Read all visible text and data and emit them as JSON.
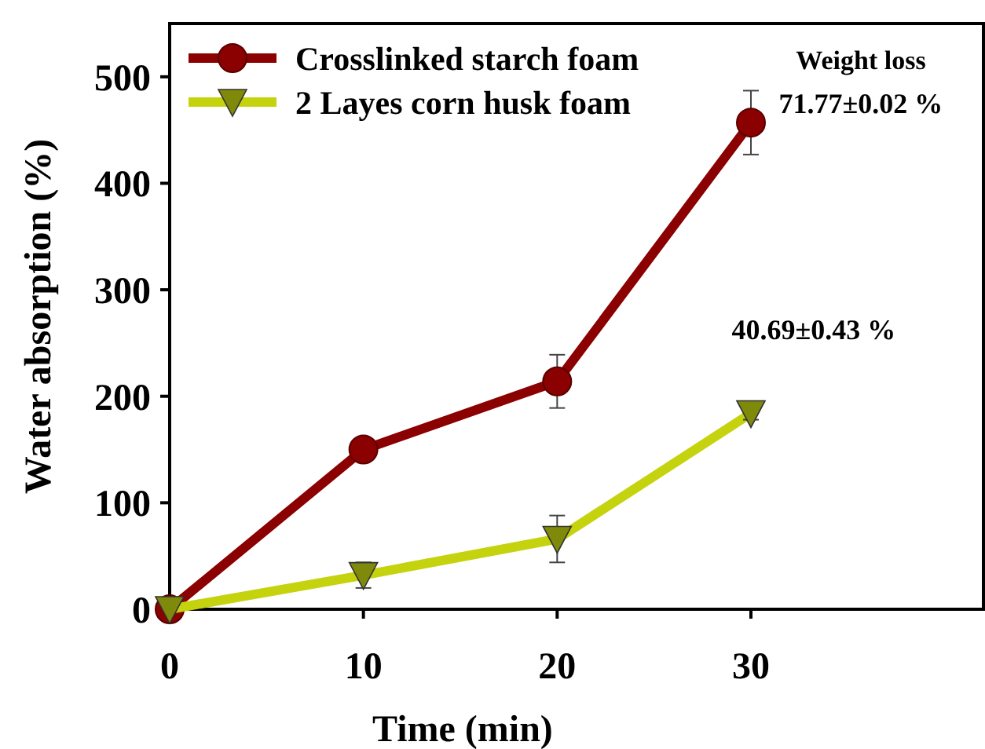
{
  "chart_data": {
    "type": "line",
    "xlabel": "Time (min)",
    "ylabel": "Water absorption (%)",
    "x": [
      0,
      10,
      20,
      30
    ],
    "series": [
      {
        "name": "Crosslinked starch foam",
        "color": "#8b0000",
        "marker": "circle",
        "values": [
          0,
          150,
          214,
          457
        ],
        "errors": [
          null,
          null,
          25,
          30
        ]
      },
      {
        "name": "2 Layes corn husk foam",
        "color": "#c5d30f",
        "marker": "triangle",
        "values": [
          0,
          32,
          66,
          184
        ],
        "errors": [
          null,
          12,
          22,
          6
        ]
      }
    ],
    "xlim": [
      0,
      42
    ],
    "xticks": [
      0,
      10,
      20,
      30
    ],
    "ylim": [
      0,
      550
    ],
    "yticks": [
      0,
      100,
      200,
      300,
      400,
      500
    ],
    "grid": false,
    "legend": "top left",
    "annotations": [
      "Weight loss",
      {
        "text": "71.77±0.02 %",
        "x": 30,
        "y": 457
      },
      {
        "text": "40.69±0.43 %",
        "x": 30,
        "y": 184
      }
    ]
  }
}
